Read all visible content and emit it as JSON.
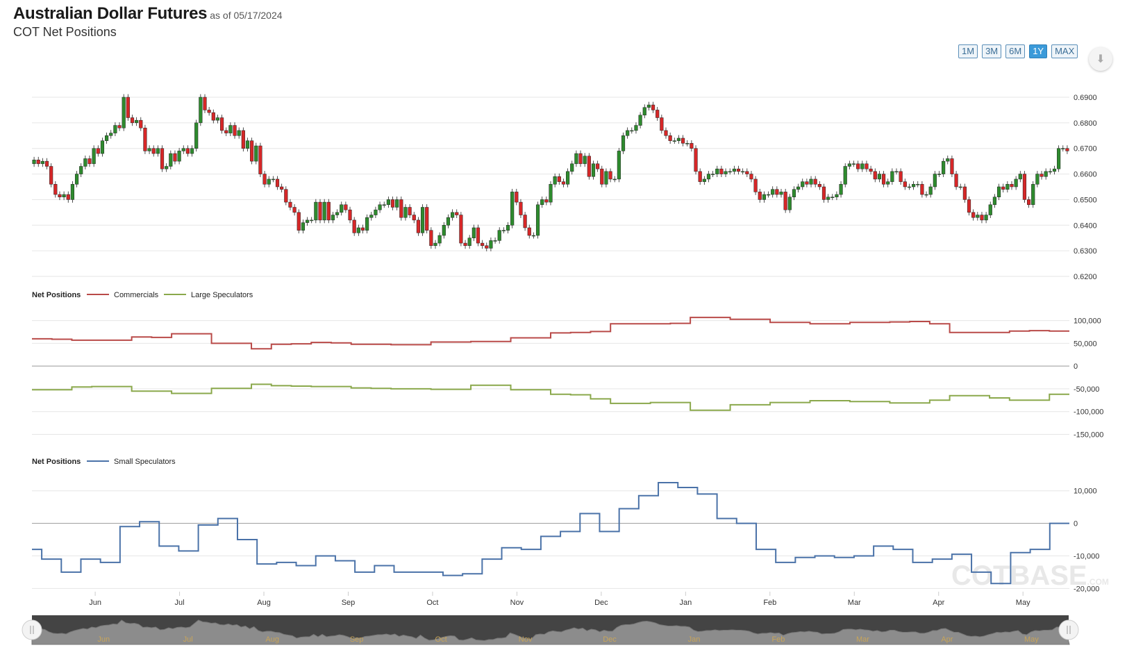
{
  "header": {
    "title": "Australian Dollar Futures",
    "as_of": "as of 05/17/2024",
    "subtitle": "COT Net Positions"
  },
  "range_buttons": [
    {
      "label": "1M",
      "active": false
    },
    {
      "label": "3M",
      "active": false
    },
    {
      "label": "6M",
      "active": false
    },
    {
      "label": "1Y",
      "active": true
    },
    {
      "label": "MAX",
      "active": false
    }
  ],
  "download_icon": "download-icon",
  "colors": {
    "up": "#2e8b2e",
    "down": "#d62728",
    "commercials": "#b94a48",
    "large_speculators": "#8aa84b",
    "small_speculators": "#4a72a8",
    "navigator": "#555555"
  },
  "x_axis": {
    "months": [
      "Jun",
      "Jul",
      "Aug",
      "Sep",
      "Oct",
      "Nov",
      "Dec",
      "Jan",
      "Feb",
      "Mar",
      "Apr",
      "May"
    ]
  },
  "navigator": {
    "months": [
      "Jun",
      "Jul",
      "Aug",
      "Sep",
      "Oct",
      "Nov",
      "Dec",
      "Jan",
      "Feb",
      "Mar",
      "Apr",
      "May"
    ]
  },
  "watermark": {
    "main": "COTBASE",
    "suffix": ".COM"
  },
  "chart_data": [
    {
      "type": "candlestick",
      "name": "price",
      "ylim": [
        0.62,
        0.69
      ],
      "yticks": [
        "0.6900",
        "0.6800",
        "0.6700",
        "0.6600",
        "0.6500",
        "0.6400",
        "0.6300",
        "0.6200"
      ],
      "ytick_values": [
        0.69,
        0.68,
        0.67,
        0.66,
        0.65,
        0.64,
        0.63,
        0.62
      ],
      "close_start": 0.664,
      "closes": [
        0.6655,
        0.664,
        0.665,
        0.663,
        0.656,
        0.652,
        0.651,
        0.652,
        0.65,
        0.656,
        0.66,
        0.663,
        0.666,
        0.664,
        0.67,
        0.668,
        0.673,
        0.675,
        0.676,
        0.679,
        0.678,
        0.69,
        0.682,
        0.68,
        0.681,
        0.678,
        0.669,
        0.67,
        0.668,
        0.67,
        0.662,
        0.663,
        0.668,
        0.665,
        0.669,
        0.67,
        0.668,
        0.67,
        0.68,
        0.69,
        0.685,
        0.684,
        0.681,
        0.682,
        0.677,
        0.676,
        0.679,
        0.675,
        0.677,
        0.67,
        0.673,
        0.665,
        0.671,
        0.66,
        0.656,
        0.658,
        0.658,
        0.655,
        0.654,
        0.649,
        0.647,
        0.645,
        0.638,
        0.641,
        0.642,
        0.642,
        0.649,
        0.642,
        0.649,
        0.642,
        0.644,
        0.645,
        0.648,
        0.646,
        0.642,
        0.637,
        0.639,
        0.638,
        0.643,
        0.644,
        0.646,
        0.648,
        0.648,
        0.65,
        0.647,
        0.65,
        0.643,
        0.647,
        0.644,
        0.642,
        0.637,
        0.647,
        0.638,
        0.632,
        0.633,
        0.636,
        0.64,
        0.643,
        0.645,
        0.644,
        0.633,
        0.632,
        0.635,
        0.639,
        0.633,
        0.632,
        0.631,
        0.634,
        0.634,
        0.638,
        0.638,
        0.64,
        0.653,
        0.649,
        0.644,
        0.639,
        0.636,
        0.636,
        0.648,
        0.65,
        0.649,
        0.656,
        0.659,
        0.657,
        0.656,
        0.661,
        0.664,
        0.668,
        0.664,
        0.667,
        0.659,
        0.664,
        0.662,
        0.656,
        0.661,
        0.658,
        0.658,
        0.669,
        0.675,
        0.677,
        0.677,
        0.679,
        0.683,
        0.686,
        0.687,
        0.685,
        0.682,
        0.677,
        0.675,
        0.673,
        0.673,
        0.674,
        0.672,
        0.672,
        0.67,
        0.661,
        0.657,
        0.658,
        0.66,
        0.66,
        0.662,
        0.66,
        0.661,
        0.661,
        0.662,
        0.661,
        0.661,
        0.66,
        0.658,
        0.653,
        0.65,
        0.652,
        0.652,
        0.654,
        0.652,
        0.653,
        0.646,
        0.651,
        0.654,
        0.655,
        0.657,
        0.656,
        0.658,
        0.656,
        0.655,
        0.65,
        0.651,
        0.651,
        0.652,
        0.656,
        0.663,
        0.664,
        0.664,
        0.662,
        0.664,
        0.662,
        0.661,
        0.658,
        0.66,
        0.656,
        0.657,
        0.661,
        0.661,
        0.657,
        0.655,
        0.655,
        0.656,
        0.656,
        0.652,
        0.652,
        0.655,
        0.66,
        0.66,
        0.665,
        0.666,
        0.66,
        0.655,
        0.655,
        0.65,
        0.645,
        0.643,
        0.644,
        0.642,
        0.644,
        0.648,
        0.651,
        0.655,
        0.654,
        0.656,
        0.655,
        0.658,
        0.66,
        0.65,
        0.648,
        0.656,
        0.66,
        0.659,
        0.661,
        0.661,
        0.662,
        0.67,
        0.67,
        0.669
      ]
    },
    {
      "type": "line",
      "name": "net-positions-1",
      "legend_title": "Net Positions",
      "ylim": [
        -160000,
        130000
      ],
      "yticks": [
        "100,000",
        "50,000",
        "0",
        "-50,000",
        "-100,000",
        "-150,000"
      ],
      "ytick_values": [
        100000,
        50000,
        0,
        -50000,
        -100000,
        -150000
      ],
      "weeks": 52,
      "series": [
        {
          "name": "Commercials",
          "values": [
            60000,
            59000,
            57000,
            57000,
            57000,
            64000,
            63000,
            71000,
            71000,
            50000,
            50000,
            38000,
            48000,
            49000,
            52000,
            51000,
            48000,
            48000,
            47000,
            47000,
            53000,
            53000,
            54000,
            54000,
            62000,
            62000,
            73000,
            74000,
            76000,
            93000,
            93000,
            93000,
            94000,
            107000,
            107000,
            103000,
            103000,
            96000,
            96000,
            93000,
            93000,
            96000,
            96000,
            97000,
            98000,
            93000,
            74000,
            74000,
            74000,
            77000,
            78000,
            77000
          ]
        },
        {
          "name": "Large Speculators",
          "values": [
            -52000,
            -52000,
            -46000,
            -45000,
            -45000,
            -55000,
            -55000,
            -60000,
            -60000,
            -49000,
            -49000,
            -40000,
            -43000,
            -44000,
            -45000,
            -45000,
            -48000,
            -49000,
            -50000,
            -50000,
            -51000,
            -51000,
            -42000,
            -42000,
            -52000,
            -52000,
            -62000,
            -63000,
            -72000,
            -82000,
            -82000,
            -80000,
            -80000,
            -97000,
            -97000,
            -85000,
            -85000,
            -80000,
            -80000,
            -76000,
            -76000,
            -78000,
            -78000,
            -81000,
            -81000,
            -75000,
            -65000,
            -65000,
            -70000,
            -75000,
            -75000,
            -62000
          ]
        }
      ]
    },
    {
      "type": "line",
      "name": "net-positions-2",
      "legend_title": "Net Positions",
      "ylim": [
        -21000,
        14000
      ],
      "yticks": [
        "10,000",
        "0",
        "-10,000",
        "-20,000"
      ],
      "ytick_values": [
        10000,
        0,
        -10000,
        -20000
      ],
      "weeks": 52,
      "series": [
        {
          "name": "Small Speculators",
          "values": [
            -8000,
            -11000,
            -11000,
            -15000,
            -15000,
            -11000,
            -11000,
            -12000,
            -12000,
            -1000,
            -1000,
            500,
            500,
            -7000,
            -7000,
            -8500,
            -8500,
            -500,
            -500,
            1500,
            1500,
            -5000,
            -5000,
            -12500,
            -12500,
            -12000,
            -12000,
            -13000,
            -13000,
            -10000,
            -10000,
            -11500,
            -11500,
            -15000,
            -15000,
            -13000,
            -13000,
            -15000,
            -15000,
            -15000,
            -15000,
            -15000,
            -16000,
            -16000,
            -15500,
            -15500,
            -11000,
            -11000,
            -7500,
            -7500,
            -8000,
            -8000,
            -4000,
            -4000,
            -2500,
            -2500,
            3000,
            3000,
            -2500,
            -2500,
            4500,
            4500,
            8500,
            8500,
            12500,
            12500,
            11000,
            11000,
            9000,
            9000,
            1500,
            1500,
            0,
            0,
            -8000,
            -8000,
            -12000,
            -12000,
            -10500,
            -10500,
            -10000,
            -10000,
            -10500,
            -10500,
            -10000,
            -10000,
            -7000,
            -7000,
            -8000,
            -8000,
            -12000,
            -12000,
            -11000,
            -11000,
            -9500,
            -9500,
            -15000,
            -15000,
            -18500,
            -18500,
            -9000,
            -9000,
            -8000,
            -8000,
            0,
            0
          ]
        }
      ]
    }
  ]
}
